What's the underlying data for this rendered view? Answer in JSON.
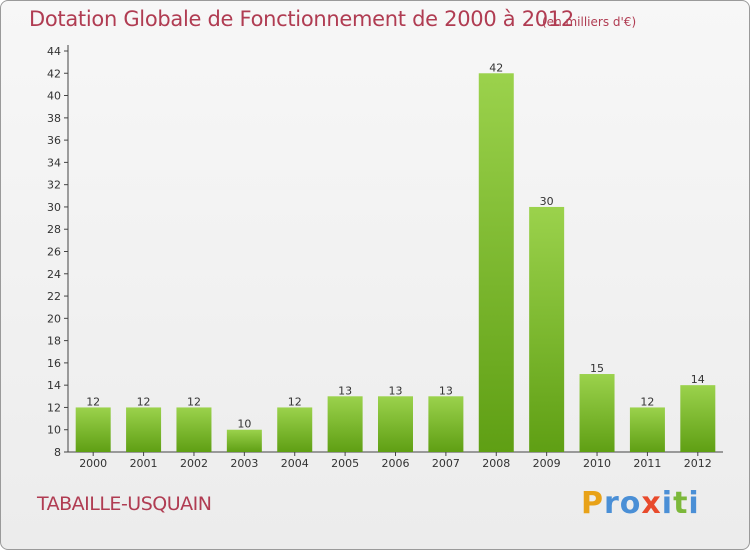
{
  "header": {
    "title": "Dotation Globale de Fonctionnement de 2000 à 2012",
    "unit": "(en milliers d'€)"
  },
  "footer": {
    "commune": "TABAILLE-USQUAIN",
    "logo": {
      "letters": [
        "P",
        "r",
        "o",
        "x",
        "i",
        "t",
        "i"
      ],
      "colors": [
        "#e8a218",
        "#4a8fd6",
        "#4a8fd6",
        "#e84a2c",
        "#4a8fd6",
        "#7cb83a",
        "#4a8fd6"
      ]
    }
  },
  "colors": {
    "text_accent": "#b03c52",
    "bar_light": "#9bd24c",
    "bar_dark": "#5f9f14"
  },
  "chart_data": {
    "type": "bar",
    "categories": [
      "2000",
      "2001",
      "2002",
      "2003",
      "2004",
      "2005",
      "2006",
      "2007",
      "2008",
      "2009",
      "2010",
      "2011",
      "2012"
    ],
    "values": [
      12,
      12,
      12,
      10,
      12,
      13,
      13,
      13,
      42,
      30,
      15,
      12,
      14
    ],
    "ylim": [
      8,
      44
    ],
    "yticks": [
      8,
      10,
      12,
      14,
      16,
      18,
      20,
      22,
      24,
      26,
      28,
      30,
      32,
      34,
      36,
      38,
      40,
      42,
      44
    ],
    "grid": false,
    "legend": "none"
  }
}
